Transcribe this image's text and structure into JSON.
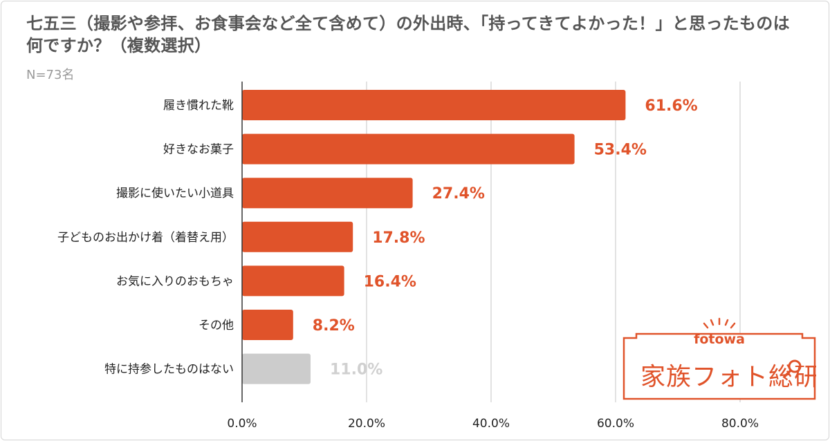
{
  "title_line1": "七五三（撮影や参拝、お食事会など全て含めて）の外出時、「持ってきてよかった！」と思ったものは",
  "title_line2": "何ですか？（複数選択）",
  "subtitle": "N=73名",
  "logo": {
    "brand": "fotowa",
    "name": "家族フォト総研"
  },
  "colors": {
    "bar": "#e0532a",
    "bar_muted": "#cccccc",
    "label_muted": "#d0d0d0",
    "grid": "#d9d9d9",
    "axis": "#333333",
    "text": "#222222"
  },
  "chart_data": {
    "type": "bar",
    "orientation": "horizontal",
    "title": "七五三（撮影や参拝、お食事会など全て含めて）の外出時、「持ってきてよかった！」と思ったものは何ですか？（複数選択）",
    "categories": [
      "履き慣れた靴",
      "好きなお菓子",
      "撮影に使いたい小道具",
      "子どものお出かけ着（着替え用）",
      "お気に入りのおもちゃ",
      "その他",
      "特に持参したものはない"
    ],
    "values": [
      61.6,
      53.4,
      27.4,
      17.8,
      16.4,
      8.2,
      11.0
    ],
    "value_labels": [
      "61.6%",
      "53.4%",
      "27.4%",
      "17.8%",
      "16.4%",
      "8.2%",
      "11.0%"
    ],
    "muted": [
      false,
      false,
      false,
      false,
      false,
      false,
      true
    ],
    "xlim": [
      0,
      90
    ],
    "xticks": [
      0,
      20,
      40,
      60,
      80
    ],
    "xtick_labels": [
      "0.0%",
      "20.0%",
      "40.0%",
      "60.0%",
      "80.0%"
    ],
    "grid": true,
    "xlabel": "",
    "ylabel": ""
  }
}
